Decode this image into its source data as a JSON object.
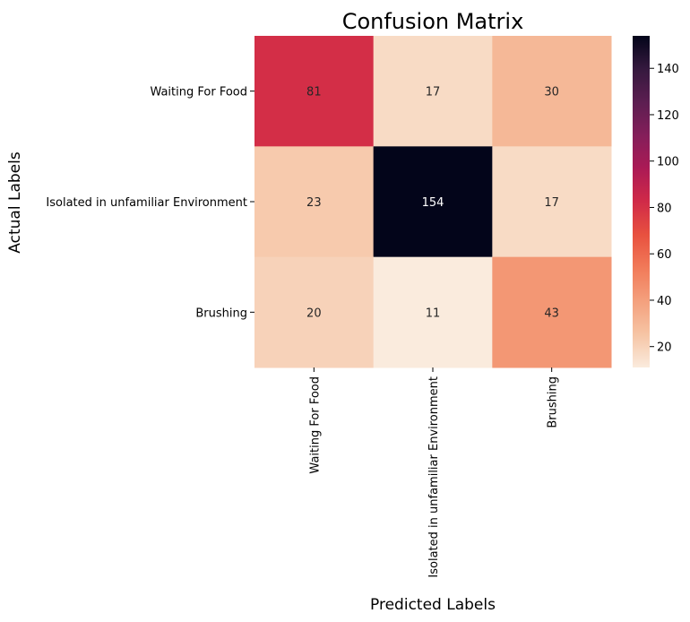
{
  "chart_data": {
    "type": "heatmap",
    "title": "Confusion Matrix",
    "xlabel": "Predicted Labels",
    "ylabel": "Actual Labels",
    "x_categories": [
      "Waiting For Food",
      "Isolated in unfamiliar Environment",
      "Brushing"
    ],
    "y_categories": [
      "Waiting For Food",
      "Isolated in unfamiliar Environment",
      "Brushing"
    ],
    "values": [
      [
        81,
        17,
        30
      ],
      [
        23,
        154,
        17
      ],
      [
        20,
        11,
        43
      ]
    ],
    "colorbar": {
      "min": 11,
      "max": 154,
      "ticks": [
        20,
        40,
        60,
        80,
        100,
        120,
        140
      ]
    }
  }
}
